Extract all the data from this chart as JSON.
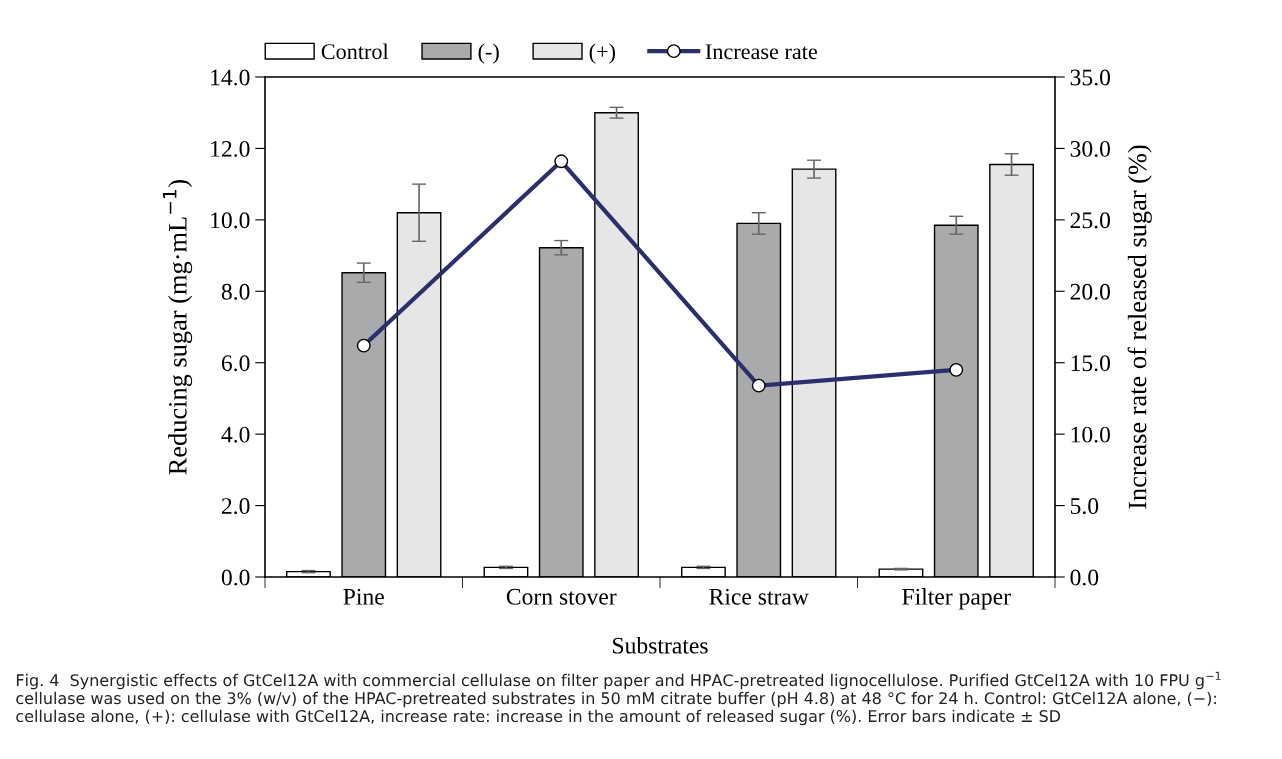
{
  "chart_data": {
    "type": "bar",
    "xlabel": "Substrates",
    "ylabel": "Reducing sugar (mg·mL$^{−1}$)",
    "y2label": "Increase rate of released sugar (%)",
    "categories": [
      "Pine",
      "Corn stover",
      "Rice straw",
      "Filter paper"
    ],
    "series": [
      {
        "name": "Control",
        "color": "#ffffff",
        "values": [
          0.15,
          0.27,
          0.27,
          0.22
        ],
        "errors": [
          0.03,
          0.03,
          0.03,
          0.02
        ]
      },
      {
        "name": "(-)",
        "color": "#a9aaac",
        "values": [
          8.52,
          9.22,
          9.9,
          9.85
        ],
        "errors": [
          0.27,
          0.2,
          0.3,
          0.25
        ]
      },
      {
        "name": "(+)",
        "color": "#e6e6e6",
        "values": [
          10.2,
          13.0,
          11.42,
          11.55
        ],
        "errors": [
          0.8,
          0.15,
          0.25,
          0.3
        ]
      },
      {
        "name": "Increase rate",
        "type": "line",
        "axis": "y2",
        "color": "#2b2f6b",
        "marker": "circle",
        "values": [
          16.2,
          29.1,
          13.4,
          14.5
        ]
      }
    ],
    "ylim": [
      0,
      14
    ],
    "yticks": [
      {
        "value": 0,
        "label": "0.0"
      },
      {
        "value": 2,
        "label": "2.0"
      },
      {
        "value": 4,
        "label": "4.0"
      },
      {
        "value": 6,
        "label": "6.0"
      },
      {
        "value": 8,
        "label": "8.0"
      },
      {
        "value": 10,
        "label": "10.0"
      },
      {
        "value": 12,
        "label": "12.0"
      },
      {
        "value": 14,
        "label": "14.0"
      }
    ],
    "y2lim": [
      0,
      35
    ],
    "y2ticks": [
      {
        "value": 0,
        "label": "0.0"
      },
      {
        "value": 5,
        "label": "5.0"
      },
      {
        "value": 10,
        "label": "10.0"
      },
      {
        "value": 15,
        "label": "15.0"
      },
      {
        "value": 20,
        "label": "20.0"
      },
      {
        "value": 25,
        "label": "25.0"
      },
      {
        "value": 30,
        "label": "30.0"
      },
      {
        "value": 35,
        "label": "35.0"
      }
    ],
    "legend": "top",
    "grid": false,
    "annotations": [
      "Fig. 4  Synergistic effects of GtCel12A with commercial cellulase on filter paper and HPAC-pretreated lignocellulose. Purified GtCel12A with 10 FPU g$^{−1}$ cellulase was used on the 3% (w/v) of the HPAC-pretreated substrates in 50 mM citrate buffer (pH 4.8) at 48 °C for 24 h. Control: GtCel12A alone, (−): cellulase alone, (+): cellulase with GtCel12A, increase rate: increase in the amount of released sugar (%). Error bars indicate ± SD"
    ]
  }
}
